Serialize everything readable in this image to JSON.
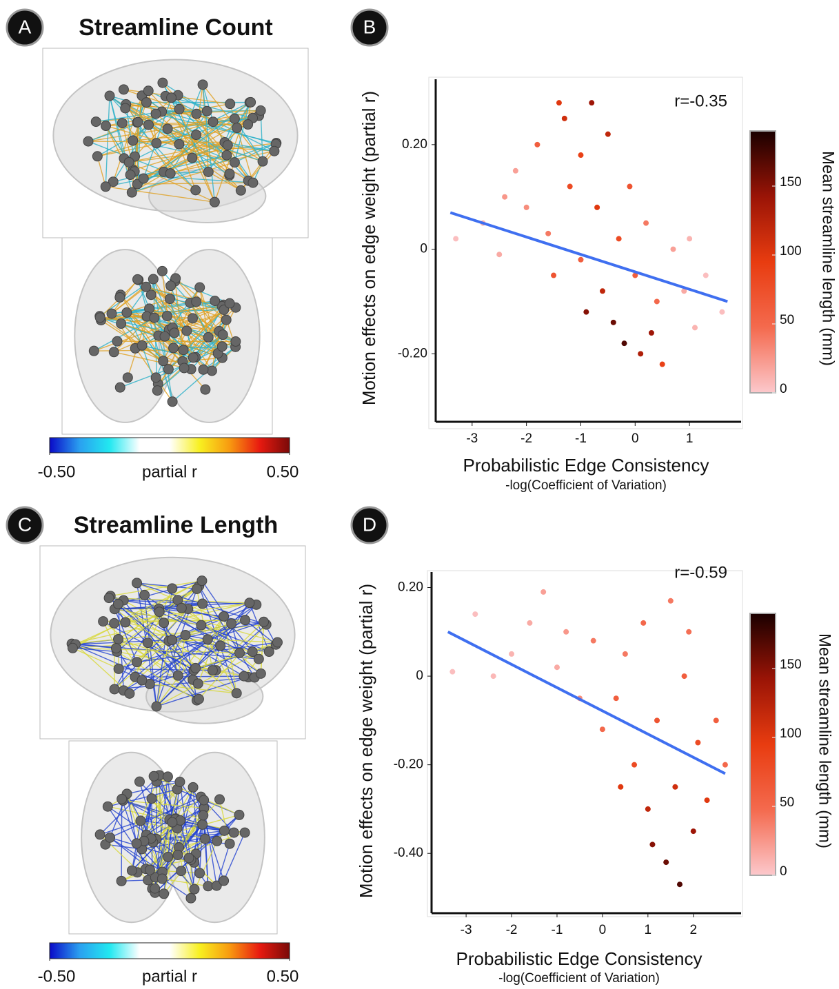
{
  "chart_data": [
    {
      "type": "brain",
      "panel_label": "A",
      "title": "Streamline Count",
      "colorbar": {
        "label": "partial r",
        "lim": [
          -0.5,
          0.5
        ],
        "ticks": [
          {
            "value": -0.5,
            "label": "-0.50"
          },
          {
            "value": 0.5,
            "label": "0.50"
          }
        ],
        "colors": [
          "#0a0ac8",
          "#2aa0f0",
          "#22e8f0",
          "#ffffff",
          "#ffffff",
          "#f8f020",
          "#f89a10",
          "#e81a10",
          "#7a0a08"
        ]
      },
      "edge_colors": [
        "#e0a020",
        "#2ab0c8"
      ]
    },
    {
      "type": "scatter",
      "panel_label": "B",
      "annotation": "r=-0.35",
      "x_label": "Probabilistic Edge Consistency",
      "x_sublabel": "-log(Coefficient of Variation)",
      "y_label": "Motion effects on edge weight (partial r)",
      "xlim": [
        -3.67,
        1.95
      ],
      "ylim": [
        -0.33,
        0.325
      ],
      "xticks": [
        -3,
        -2,
        -1,
        0,
        1
      ],
      "yticks": [
        {
          "value": -0.2,
          "label": "-0.20"
        },
        0,
        {
          "value": 0.2,
          "label": "0.20"
        }
      ],
      "x": [
        -3.3,
        -2.8,
        -2.5,
        -2.2,
        -2.0,
        -1.8,
        -1.6,
        -1.5,
        -1.3,
        -1.2,
        -1.0,
        -1.0,
        -0.8,
        -0.7,
        -0.6,
        -0.5,
        -0.4,
        -0.3,
        -0.2,
        -0.1,
        0.0,
        0.1,
        0.2,
        0.4,
        0.5,
        0.7,
        0.9,
        1.1,
        1.3,
        1.6,
        -0.9,
        -1.4,
        0.3,
        -2.4,
        1.0
      ],
      "values": [
        0.02,
        0.05,
        -0.01,
        0.15,
        0.08,
        0.2,
        0.03,
        -0.05,
        0.25,
        0.12,
        0.18,
        -0.02,
        0.28,
        0.08,
        -0.08,
        0.22,
        -0.14,
        0.02,
        -0.18,
        0.12,
        -0.05,
        -0.2,
        0.05,
        -0.1,
        -0.22,
        0.0,
        -0.08,
        -0.15,
        -0.05,
        -0.12,
        -0.12,
        0.28,
        -0.16,
        0.1,
        0.02
      ],
      "color_values": [
        5,
        10,
        15,
        20,
        30,
        60,
        40,
        70,
        110,
        80,
        90,
        60,
        140,
        100,
        120,
        120,
        160,
        80,
        170,
        70,
        60,
        130,
        40,
        50,
        90,
        20,
        15,
        10,
        5,
        5,
        150,
        100,
        140,
        25,
        10
      ],
      "fit": {
        "x": [
          -3.4,
          1.7
        ],
        "values": [
          0.07,
          -0.1
        ],
        "color": "#3f6ff0"
      },
      "colorbar": {
        "label": "Mean streamline length (mm)",
        "lim": [
          0,
          190
        ],
        "ticks": [
          0,
          50,
          100,
          150
        ],
        "colors": [
          "#fcc8cc",
          "#f46a4e",
          "#e83c10",
          "#9a1406",
          "#1a0000"
        ]
      }
    },
    {
      "type": "brain",
      "panel_label": "C",
      "title": "Streamline Length",
      "colorbar": {
        "label": "partial r",
        "lim": [
          -0.5,
          0.5
        ],
        "ticks": [
          {
            "value": -0.5,
            "label": "-0.50"
          },
          {
            "value": 0.5,
            "label": "0.50"
          }
        ],
        "colors": [
          "#0a0ac8",
          "#2aa0f0",
          "#22e8f0",
          "#ffffff",
          "#ffffff",
          "#f8f020",
          "#f89a10",
          "#e81a10",
          "#7a0a08"
        ]
      },
      "edge_colors": [
        "#2040d0",
        "#d8d838"
      ]
    },
    {
      "type": "scatter",
      "panel_label": "D",
      "annotation": "r=-0.59",
      "x_label": "Probabilistic Edge Consistency",
      "x_sublabel": "-log(Coefficient of Variation)",
      "y_label": "Motion effects on edge weight (partial r)",
      "xlim": [
        -3.76,
        3.05
      ],
      "ylim": [
        -0.535,
        0.235
      ],
      "xticks": [
        -3,
        -2,
        -1,
        0,
        1,
        2
      ],
      "yticks": [
        {
          "value": -0.4,
          "label": "-0.40"
        },
        {
          "value": -0.2,
          "label": "-0.20"
        },
        0,
        {
          "value": 0.2,
          "label": "0.20"
        }
      ],
      "x": [
        -3.3,
        -2.8,
        -2.4,
        -2.0,
        -1.6,
        -1.3,
        -1.0,
        -0.8,
        -0.5,
        -0.2,
        0.0,
        0.3,
        0.5,
        0.7,
        0.9,
        1.0,
        1.2,
        1.4,
        1.5,
        1.6,
        1.7,
        1.8,
        2.0,
        2.1,
        2.3,
        2.5,
        2.7,
        1.9,
        0.4,
        1.1
      ],
      "values": [
        0.01,
        0.14,
        0.0,
        0.05,
        0.12,
        0.19,
        0.02,
        0.1,
        -0.05,
        0.08,
        -0.12,
        -0.05,
        0.05,
        -0.2,
        0.12,
        -0.3,
        -0.1,
        -0.42,
        0.17,
        -0.25,
        -0.47,
        0.0,
        -0.35,
        -0.15,
        -0.28,
        -0.1,
        -0.2,
        0.1,
        -0.25,
        -0.38
      ],
      "color_values": [
        5,
        5,
        8,
        10,
        15,
        20,
        15,
        25,
        30,
        40,
        50,
        60,
        40,
        80,
        50,
        120,
        70,
        160,
        40,
        110,
        170,
        60,
        140,
        80,
        100,
        60,
        50,
        45,
        100,
        150
      ],
      "fit": {
        "x": [
          -3.4,
          2.7
        ],
        "values": [
          0.1,
          -0.22
        ],
        "color": "#3f6ff0"
      },
      "colorbar": {
        "label": "Mean streamline length (mm)",
        "lim": [
          0,
          190
        ],
        "ticks": [
          0,
          50,
          100,
          150
        ],
        "colors": [
          "#fcc8cc",
          "#f46a4e",
          "#e83c10",
          "#9a1406",
          "#1a0000"
        ]
      }
    }
  ]
}
